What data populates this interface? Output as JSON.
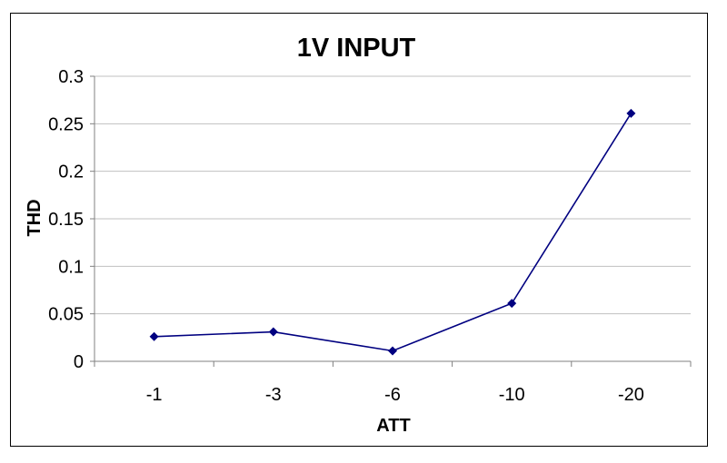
{
  "chart_data": {
    "type": "line",
    "title": "1V INPUT",
    "xlabel": "ATT",
    "ylabel": "THD",
    "categories": [
      "-1",
      "-3",
      "-6",
      "-10",
      "-20"
    ],
    "series": [
      {
        "values": [
          0.026,
          0.031,
          0.011,
          0.061,
          0.261
        ]
      }
    ],
    "ylim": [
      0,
      0.3
    ],
    "yticks": [
      "0",
      "0.05",
      "0.1",
      "0.15",
      "0.2",
      "0.25",
      "0.3"
    ],
    "grid": true,
    "legend": "none",
    "colors": {
      "series": "#000080",
      "grid": "#c0c0c0",
      "axis": "#808080"
    }
  }
}
